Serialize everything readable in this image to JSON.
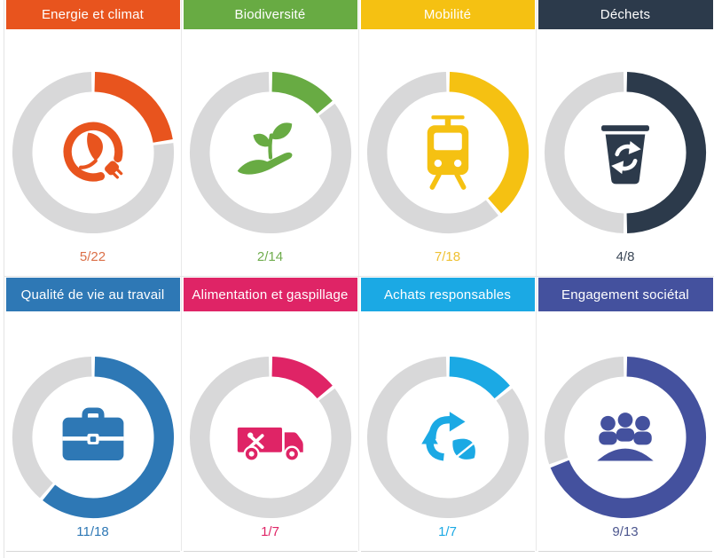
{
  "ring_color": "#D8D8D9",
  "cards": [
    {
      "label": "Energie et climat",
      "value": "5/22",
      "done": 5,
      "total": 22,
      "color": "#E8541E",
      "value_color": "#DB6F47",
      "icon": "energy-plug-leaf-icon"
    },
    {
      "label": "Biodiversité",
      "value": "2/14",
      "done": 2,
      "total": 14,
      "color": "#68AB43",
      "value_color": "#6FAC4D",
      "icon": "hand-sprout-icon"
    },
    {
      "label": "Mobilité",
      "value": "7/18",
      "done": 7,
      "total": 18,
      "color": "#F5C112",
      "value_color": "#EFC132",
      "icon": "tram-icon"
    },
    {
      "label": "Déchets",
      "value": "4/8",
      "done": 4,
      "total": 8,
      "color": "#2C3A4B",
      "value_color": "#3A4656",
      "icon": "recycle-bin-icon"
    },
    {
      "label": "Qualité de vie au travail",
      "value": "11/18",
      "done": 11,
      "total": 18,
      "color": "#2E78B5",
      "value_color": "#2E78B5",
      "icon": "briefcase-icon"
    },
    {
      "label": "Alimentation et gaspillage",
      "value": "1/7",
      "done": 1,
      "total": 7,
      "color": "#DF2466",
      "value_color": "#DF2466",
      "icon": "food-truck-icon"
    },
    {
      "label": "Achats responsables",
      "value": "1/7",
      "done": 1,
      "total": 7,
      "color": "#1BA9E4",
      "value_color": "#1BA9E4",
      "icon": "recycle-leaf-icon"
    },
    {
      "label": "Engagement sociétal",
      "value": "9/13",
      "done": 9,
      "total": 13,
      "color": "#44519E",
      "value_color": "#4D578F",
      "icon": "meeting-people-icon"
    }
  ],
  "chart_data": {
    "type": "pie",
    "note": "eight donut progress gauges, fill = done/total starting at 12 o'clock clockwise",
    "charts": [
      {
        "title": "Energie et climat",
        "done": 5,
        "total": 22
      },
      {
        "title": "Biodiversité",
        "done": 2,
        "total": 14
      },
      {
        "title": "Mobilité",
        "done": 7,
        "total": 18
      },
      {
        "title": "Déchets",
        "done": 4,
        "total": 8
      },
      {
        "title": "Qualité de vie au travail",
        "done": 11,
        "total": 18
      },
      {
        "title": "Alimentation et gaspillage",
        "done": 1,
        "total": 7
      },
      {
        "title": "Achats responsables",
        "done": 1,
        "total": 7
      },
      {
        "title": "Engagement sociétal",
        "done": 9,
        "total": 13
      }
    ]
  }
}
